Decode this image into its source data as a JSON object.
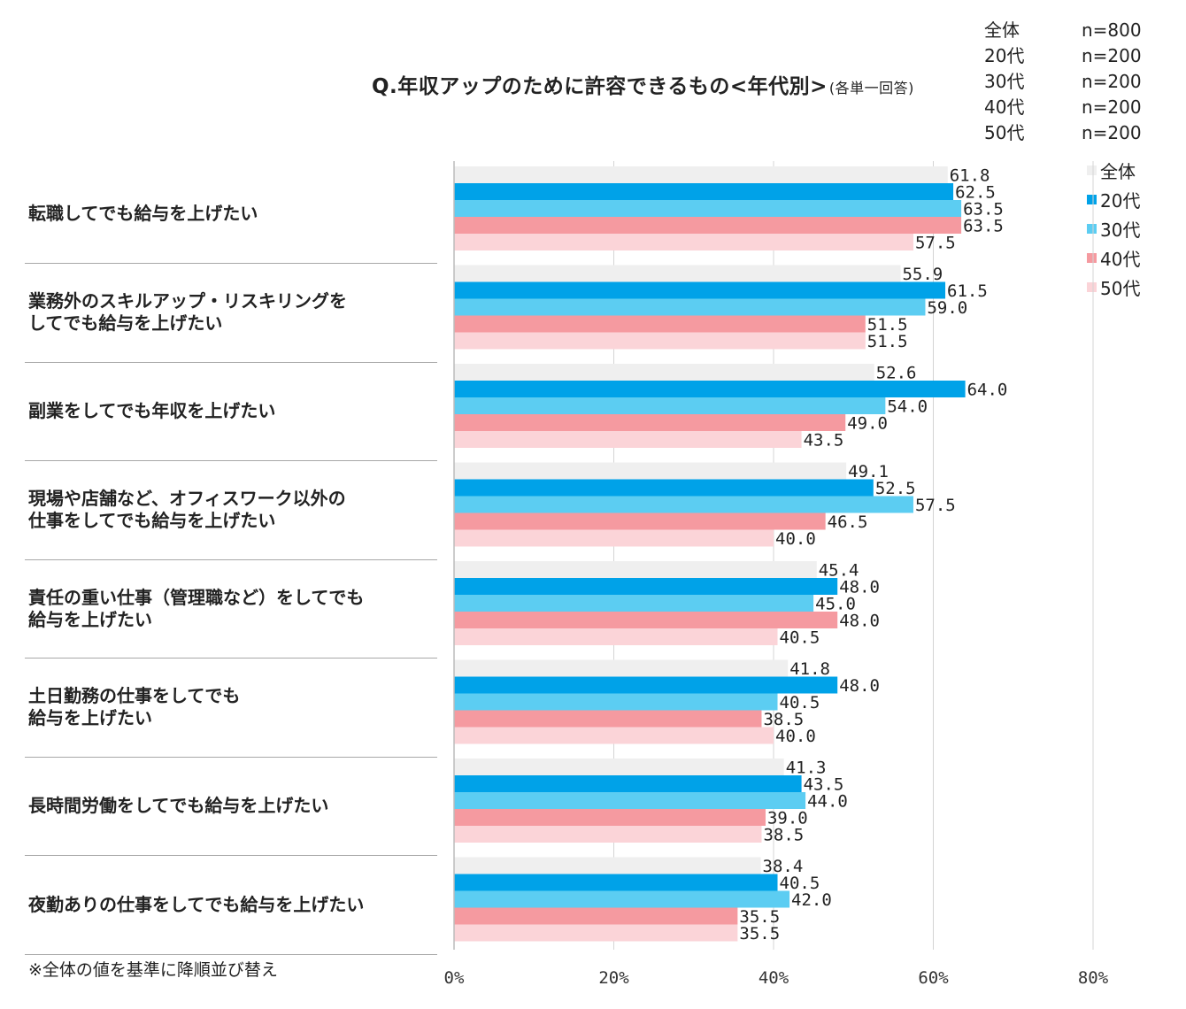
{
  "chart_data": {
    "type": "bar",
    "orientation": "horizontal",
    "title": "Q.年収アップのために許容できるもの<年代別>",
    "title_note": "(各単一回答)",
    "sample_sizes": [
      {
        "group": "全体",
        "n": "n=800"
      },
      {
        "group": "20代",
        "n": "n=200"
      },
      {
        "group": "30代",
        "n": "n=200"
      },
      {
        "group": "40代",
        "n": "n=200"
      },
      {
        "group": "50代",
        "n": "n=200"
      }
    ],
    "categories": [
      [
        "転職してでも給与を上げたい"
      ],
      [
        "業務外のスキルアップ・リスキリングを",
        "してでも給与を上げたい"
      ],
      [
        "副業をしてでも年収を上げたい"
      ],
      [
        "現場や店舗など、オフィスワーク以外の",
        "仕事をしてでも給与を上げたい"
      ],
      [
        "責任の重い仕事（管理職など）をしてでも",
        "給与を上げたい"
      ],
      [
        "土日勤務の仕事をしてでも",
        "給与を上げたい"
      ],
      [
        "長時間労働をしてでも給与を上げたい"
      ],
      [
        "夜勤ありの仕事をしてでも給与を上げたい"
      ]
    ],
    "series": [
      {
        "name": "全体",
        "color": "#efefef",
        "values": [
          61.8,
          55.9,
          52.6,
          49.1,
          45.4,
          41.8,
          41.3,
          38.4
        ],
        "labels": [
          "61.8",
          "55.9",
          "52.6",
          "49.1",
          "45.4",
          "41.8",
          "41.3",
          "38.4"
        ]
      },
      {
        "name": "20代",
        "color": "#00a2e8",
        "values": [
          62.5,
          61.5,
          64.0,
          52.5,
          48.0,
          48.0,
          43.5,
          40.5
        ],
        "labels": [
          "62.5",
          "61.5",
          "64.0",
          "52.5",
          "48.0",
          "48.0",
          "43.5",
          "40.5"
        ]
      },
      {
        "name": "30代",
        "color": "#5ccdf2",
        "values": [
          63.5,
          59.0,
          54.0,
          57.5,
          45.0,
          40.5,
          44.0,
          42.0
        ],
        "labels": [
          "63.5",
          "59.0",
          "54.0",
          "57.5",
          "45.0",
          "40.5",
          "44.0",
          "42.0"
        ]
      },
      {
        "name": "40代",
        "color": "#f59aa0",
        "values": [
          63.5,
          51.5,
          49.0,
          46.5,
          48.0,
          38.5,
          39.0,
          35.5
        ],
        "labels": [
          "63.5",
          "51.5",
          "49.0",
          "46.5",
          "48.0",
          "38.5",
          "39.0",
          "35.5"
        ]
      },
      {
        "name": "50代",
        "color": "#fbd4d8",
        "values": [
          57.5,
          51.5,
          43.5,
          40.0,
          40.5,
          40.0,
          38.5,
          35.5
        ],
        "labels": [
          "57.5",
          "51.5",
          "43.5",
          "40.0",
          "40.5",
          "40.0",
          "38.5",
          "35.5"
        ]
      }
    ],
    "xlim": [
      0,
      80
    ],
    "xticks": [
      0,
      20,
      40,
      60,
      80
    ],
    "xtick_labels": [
      "0%",
      "20%",
      "40%",
      "60%",
      "80%"
    ],
    "grid": true,
    "legend_position": "right",
    "footnote": "※全体の値を基準に降順並び替え"
  }
}
